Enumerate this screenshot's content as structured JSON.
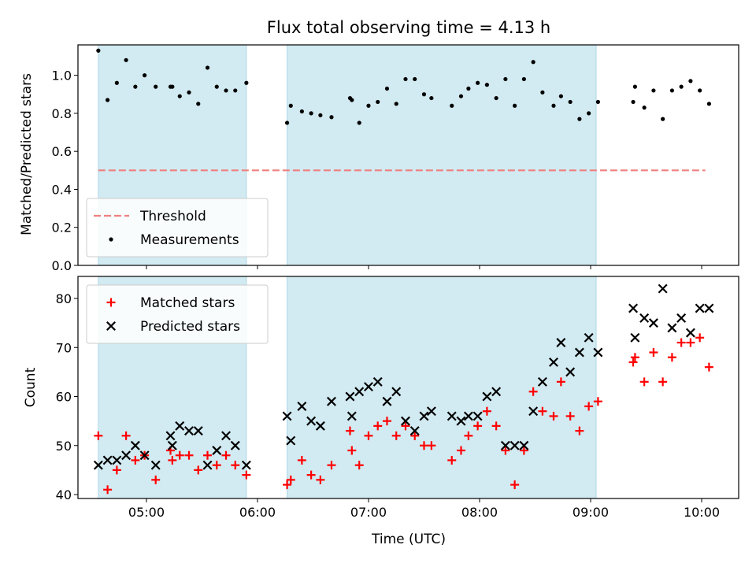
{
  "chart_data": {
    "type": "scatter",
    "title": "Flux total observing time = 4.13 h",
    "xlabel": "Time (UTC)",
    "x_unit": "hours UTC",
    "xlim": [
      "04:23",
      "10:20"
    ],
    "xticks": [
      "05:00",
      "06:00",
      "07:00",
      "08:00",
      "09:00",
      "10:00"
    ],
    "shaded_intervals": [
      [
        "04:34",
        "05:54"
      ],
      [
        "06:16",
        "09:03"
      ]
    ],
    "shade_color": "#add8e6",
    "panels": [
      {
        "name": "ratio",
        "ylabel": "Matched/Predicted stars",
        "ylim": [
          0.0,
          1.16
        ],
        "yticks": [
          "0.0",
          "0.2",
          "0.4",
          "0.6",
          "0.8",
          "1.0"
        ],
        "legend_position": "lower left",
        "threshold": {
          "label": "Threshold",
          "value": 0.5,
          "x_start": "04:34",
          "x_end": "10:02",
          "color": "#f08080"
        },
        "series": [
          {
            "name": "Measurements",
            "marker": "dot",
            "color": "#000000",
            "points": [
              [
                "04:34",
                1.13
              ],
              [
                "04:39",
                0.87
              ],
              [
                "04:44",
                0.96
              ],
              [
                "04:49",
                1.08
              ],
              [
                "04:54",
                0.94
              ],
              [
                "04:59",
                1.0
              ],
              [
                "05:05",
                0.94
              ],
              [
                "05:13",
                0.94
              ],
              [
                "05:14",
                0.94
              ],
              [
                "05:18",
                0.89
              ],
              [
                "05:23",
                0.91
              ],
              [
                "05:28",
                0.85
              ],
              [
                "05:33",
                1.04
              ],
              [
                "05:38",
                0.94
              ],
              [
                "05:43",
                0.92
              ],
              [
                "05:48",
                0.92
              ],
              [
                "05:54",
                0.96
              ],
              [
                "06:16",
                0.75
              ],
              [
                "06:18",
                0.84
              ],
              [
                "06:24",
                0.81
              ],
              [
                "06:29",
                0.8
              ],
              [
                "06:34",
                0.79
              ],
              [
                "06:40",
                0.78
              ],
              [
                "06:50",
                0.88
              ],
              [
                "06:51",
                0.87
              ],
              [
                "06:55",
                0.75
              ],
              [
                "07:00",
                0.84
              ],
              [
                "07:05",
                0.86
              ],
              [
                "07:10",
                0.93
              ],
              [
                "07:15",
                0.85
              ],
              [
                "07:20",
                0.98
              ],
              [
                "07:25",
                0.98
              ],
              [
                "07:30",
                0.9
              ],
              [
                "07:34",
                0.88
              ],
              [
                "07:45",
                0.84
              ],
              [
                "07:50",
                0.89
              ],
              [
                "07:54",
                0.93
              ],
              [
                "07:59",
                0.96
              ],
              [
                "08:04",
                0.95
              ],
              [
                "08:09",
                0.88
              ],
              [
                "08:14",
                0.98
              ],
              [
                "08:19",
                0.84
              ],
              [
                "08:24",
                0.98
              ],
              [
                "08:29",
                1.07
              ],
              [
                "08:34",
                0.91
              ],
              [
                "08:40",
                0.84
              ],
              [
                "08:44",
                0.89
              ],
              [
                "08:49",
                0.86
              ],
              [
                "08:54",
                0.77
              ],
              [
                "08:59",
                0.8
              ],
              [
                "09:04",
                0.86
              ],
              [
                "09:23",
                0.86
              ],
              [
                "09:24",
                0.94
              ],
              [
                "09:29",
                0.83
              ],
              [
                "09:34",
                0.92
              ],
              [
                "09:39",
                0.77
              ],
              [
                "09:44",
                0.92
              ],
              [
                "09:49",
                0.94
              ],
              [
                "09:54",
                0.97
              ],
              [
                "09:59",
                0.92
              ],
              [
                "10:04",
                0.85
              ]
            ]
          }
        ]
      },
      {
        "name": "count",
        "ylabel": "Count",
        "ylim": [
          39.2,
          84.5
        ],
        "yticks": [
          "40",
          "50",
          "60",
          "70",
          "80"
        ],
        "legend_position": "upper left",
        "series": [
          {
            "name": "Matched stars",
            "marker": "plus",
            "color": "#ff0000",
            "points": [
              [
                "04:34",
                52
              ],
              [
                "04:39",
                41
              ],
              [
                "04:44",
                45
              ],
              [
                "04:49",
                52
              ],
              [
                "04:54",
                47
              ],
              [
                "04:59",
                48
              ],
              [
                "05:05",
                43
              ],
              [
                "05:13",
                49
              ],
              [
                "05:14",
                47
              ],
              [
                "05:18",
                48
              ],
              [
                "05:23",
                48
              ],
              [
                "05:28",
                45
              ],
              [
                "05:33",
                48
              ],
              [
                "05:38",
                46
              ],
              [
                "05:43",
                48
              ],
              [
                "05:48",
                46
              ],
              [
                "05:54",
                44
              ],
              [
                "06:16",
                42
              ],
              [
                "06:18",
                43
              ],
              [
                "06:24",
                47
              ],
              [
                "06:29",
                44
              ],
              [
                "06:34",
                43
              ],
              [
                "06:40",
                46
              ],
              [
                "06:50",
                53
              ],
              [
                "06:51",
                49
              ],
              [
                "06:55",
                46
              ],
              [
                "07:00",
                52
              ],
              [
                "07:05",
                54
              ],
              [
                "07:10",
                55
              ],
              [
                "07:15",
                52
              ],
              [
                "07:20",
                54
              ],
              [
                "07:25",
                52
              ],
              [
                "07:30",
                50
              ],
              [
                "07:34",
                50
              ],
              [
                "07:45",
                47
              ],
              [
                "07:50",
                49
              ],
              [
                "07:54",
                52
              ],
              [
                "07:59",
                54
              ],
              [
                "08:04",
                57
              ],
              [
                "08:09",
                54
              ],
              [
                "08:14",
                49
              ],
              [
                "08:19",
                42
              ],
              [
                "08:24",
                49
              ],
              [
                "08:29",
                61
              ],
              [
                "08:34",
                57
              ],
              [
                "08:40",
                56
              ],
              [
                "08:44",
                63
              ],
              [
                "08:49",
                56
              ],
              [
                "08:54",
                53
              ],
              [
                "08:59",
                58
              ],
              [
                "09:04",
                59
              ],
              [
                "09:23",
                67
              ],
              [
                "09:24",
                68
              ],
              [
                "09:29",
                63
              ],
              [
                "09:34",
                69
              ],
              [
                "09:39",
                63
              ],
              [
                "09:44",
                68
              ],
              [
                "09:49",
                71
              ],
              [
                "09:54",
                71
              ],
              [
                "09:59",
                72
              ],
              [
                "10:04",
                66
              ]
            ]
          },
          {
            "name": "Predicted stars",
            "marker": "x",
            "color": "#000000",
            "points": [
              [
                "04:34",
                46
              ],
              [
                "04:39",
                47
              ],
              [
                "04:44",
                47
              ],
              [
                "04:49",
                48
              ],
              [
                "04:54",
                50
              ],
              [
                "04:59",
                48
              ],
              [
                "05:05",
                46
              ],
              [
                "05:13",
                52
              ],
              [
                "05:14",
                50
              ],
              [
                "05:18",
                54
              ],
              [
                "05:23",
                53
              ],
              [
                "05:28",
                53
              ],
              [
                "05:33",
                46
              ],
              [
                "05:38",
                49
              ],
              [
                "05:43",
                52
              ],
              [
                "05:48",
                50
              ],
              [
                "05:54",
                46
              ],
              [
                "06:16",
                56
              ],
              [
                "06:18",
                51
              ],
              [
                "06:24",
                58
              ],
              [
                "06:29",
                55
              ],
              [
                "06:34",
                54
              ],
              [
                "06:40",
                59
              ],
              [
                "06:50",
                60
              ],
              [
                "06:51",
                56
              ],
              [
                "06:55",
                61
              ],
              [
                "07:00",
                62
              ],
              [
                "07:05",
                63
              ],
              [
                "07:10",
                59
              ],
              [
                "07:15",
                61
              ],
              [
                "07:20",
                55
              ],
              [
                "07:25",
                53
              ],
              [
                "07:30",
                56
              ],
              [
                "07:34",
                57
              ],
              [
                "07:45",
                56
              ],
              [
                "07:50",
                55
              ],
              [
                "07:54",
                56
              ],
              [
                "07:59",
                56
              ],
              [
                "08:04",
                60
              ],
              [
                "08:09",
                61
              ],
              [
                "08:14",
                50
              ],
              [
                "08:19",
                50
              ],
              [
                "08:24",
                50
              ],
              [
                "08:29",
                57
              ],
              [
                "08:34",
                63
              ],
              [
                "08:40",
                67
              ],
              [
                "08:44",
                71
              ],
              [
                "08:49",
                65
              ],
              [
                "08:54",
                69
              ],
              [
                "08:59",
                72
              ],
              [
                "09:04",
                69
              ],
              [
                "09:23",
                78
              ],
              [
                "09:24",
                72
              ],
              [
                "09:29",
                76
              ],
              [
                "09:34",
                75
              ],
              [
                "09:39",
                82
              ],
              [
                "09:44",
                74
              ],
              [
                "09:49",
                76
              ],
              [
                "09:54",
                73
              ],
              [
                "09:59",
                78
              ],
              [
                "10:04",
                78
              ]
            ]
          }
        ]
      }
    ]
  }
}
